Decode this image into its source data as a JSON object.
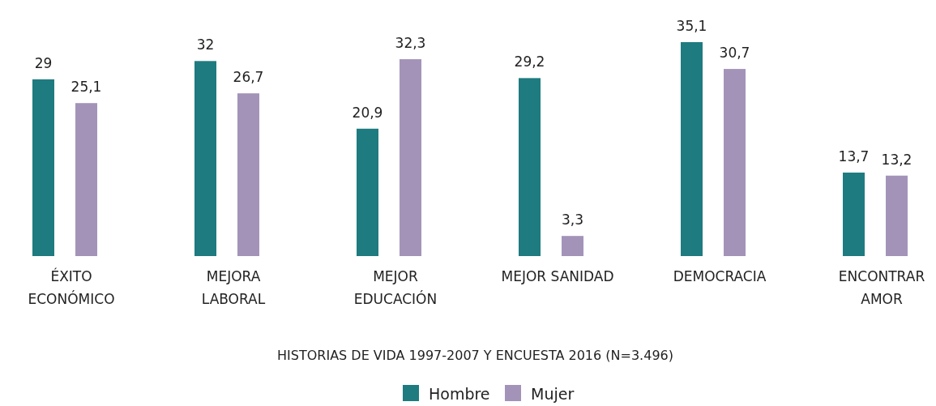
{
  "chart_data": {
    "type": "bar",
    "xlabel": "HISTORIAS DE VIDA 1997-2007 Y ENCUESTA 2016 (N=3.496)",
    "categories": [
      "ÉXITO\nECONÓMICO",
      "MEJORA\nLABORAL",
      "MEJOR\nEDUCACIÓN",
      "MEJOR SANIDAD",
      "DEMOCRACIA",
      "ENCONTRAR\nAMOR"
    ],
    "series": [
      {
        "name": "Hombre",
        "color": "#1e7b80",
        "values": [
          29,
          32,
          20.9,
          29.2,
          35.1,
          13.7
        ],
        "value_labels": [
          "29",
          "32",
          "20,9",
          "29,2",
          "35,1",
          "13,7"
        ]
      },
      {
        "name": "Mujer",
        "color": "#a393b8",
        "values": [
          25.1,
          26.7,
          32.3,
          3.3,
          30.7,
          13.2
        ],
        "value_labels": [
          "25,1",
          "26,7",
          "32,3",
          "3,3",
          "30,7",
          "13,2"
        ]
      }
    ],
    "legend": "bottom"
  }
}
